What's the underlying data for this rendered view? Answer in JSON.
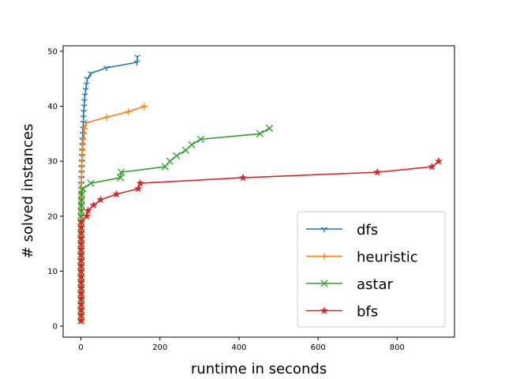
{
  "chart_data": {
    "type": "line",
    "xlabel": "runtime in seconds",
    "ylabel": "# solved instances",
    "xlim": [
      -45,
      945
    ],
    "ylim": [
      -2,
      51
    ],
    "xticks": [
      0,
      200,
      400,
      600,
      800
    ],
    "yticks": [
      0,
      10,
      20,
      30,
      40,
      50
    ],
    "legend_position": "lower right",
    "grid": false,
    "series": [
      {
        "name": "dfs",
        "color": "#1f77b4",
        "marker": "tri_down",
        "points": [
          [
            0.5,
            1
          ],
          [
            0.5,
            2
          ],
          [
            0.5,
            3
          ],
          [
            0.5,
            4
          ],
          [
            0.5,
            5
          ],
          [
            0.5,
            6
          ],
          [
            0.5,
            7
          ],
          [
            0.5,
            8
          ],
          [
            0.5,
            9
          ],
          [
            0.5,
            10
          ],
          [
            0.5,
            11
          ],
          [
            0.5,
            12
          ],
          [
            0.5,
            13
          ],
          [
            0.5,
            14
          ],
          [
            0.5,
            15
          ],
          [
            0.5,
            16
          ],
          [
            0.5,
            17
          ],
          [
            0.5,
            18
          ],
          [
            0.5,
            19
          ],
          [
            0.5,
            20
          ],
          [
            0.6,
            21
          ],
          [
            0.7,
            22
          ],
          [
            0.8,
            23
          ],
          [
            0.9,
            24
          ],
          [
            1,
            25
          ],
          [
            1.2,
            26
          ],
          [
            1.5,
            27
          ],
          [
            1.8,
            28
          ],
          [
            2,
            29
          ],
          [
            2.5,
            30
          ],
          [
            3,
            31
          ],
          [
            3.2,
            32
          ],
          [
            3.5,
            33
          ],
          [
            4,
            34
          ],
          [
            4.5,
            35
          ],
          [
            5,
            36
          ],
          [
            6,
            37
          ],
          [
            6.5,
            38
          ],
          [
            7,
            39
          ],
          [
            8,
            40
          ],
          [
            9,
            41
          ],
          [
            10,
            42
          ],
          [
            12,
            43
          ],
          [
            14,
            44
          ],
          [
            16,
            45
          ],
          [
            25,
            46
          ],
          [
            65,
            47
          ],
          [
            142,
            48
          ],
          [
            143,
            49
          ]
        ]
      },
      {
        "name": "heuristic",
        "color": "#ff7f0e",
        "marker": "plus",
        "points": [
          [
            0.5,
            1
          ],
          [
            0.5,
            2
          ],
          [
            0.5,
            3
          ],
          [
            0.5,
            4
          ],
          [
            0.5,
            5
          ],
          [
            0.5,
            6
          ],
          [
            0.5,
            7
          ],
          [
            0.5,
            8
          ],
          [
            0.5,
            9
          ],
          [
            0.5,
            10
          ],
          [
            0.5,
            11
          ],
          [
            0.5,
            12
          ],
          [
            0.5,
            13
          ],
          [
            0.5,
            14
          ],
          [
            0.5,
            15
          ],
          [
            0.5,
            16
          ],
          [
            0.5,
            17
          ],
          [
            0.5,
            18
          ],
          [
            0.5,
            19
          ],
          [
            0.5,
            20
          ],
          [
            0.6,
            21
          ],
          [
            0.7,
            22
          ],
          [
            0.8,
            23
          ],
          [
            0.9,
            24
          ],
          [
            1,
            25
          ],
          [
            1.2,
            26
          ],
          [
            1.5,
            27
          ],
          [
            1.8,
            28
          ],
          [
            2,
            29
          ],
          [
            2.5,
            30
          ],
          [
            3,
            31
          ],
          [
            4,
            32
          ],
          [
            5,
            33
          ],
          [
            6,
            34
          ],
          [
            8,
            35
          ],
          [
            9,
            36
          ],
          [
            14,
            37
          ],
          [
            65,
            38
          ],
          [
            120,
            39
          ],
          [
            160,
            40
          ]
        ]
      },
      {
        "name": "astar",
        "color": "#2ca02c",
        "marker": "x",
        "points": [
          [
            0.5,
            1
          ],
          [
            0.5,
            2
          ],
          [
            0.5,
            3
          ],
          [
            0.5,
            4
          ],
          [
            0.5,
            5
          ],
          [
            0.5,
            6
          ],
          [
            0.5,
            7
          ],
          [
            0.5,
            8
          ],
          [
            0.5,
            9
          ],
          [
            0.5,
            10
          ],
          [
            0.5,
            11
          ],
          [
            0.5,
            12
          ],
          [
            0.5,
            13
          ],
          [
            0.5,
            14
          ],
          [
            0.5,
            15
          ],
          [
            0.5,
            16
          ],
          [
            0.5,
            17
          ],
          [
            0.5,
            18
          ],
          [
            0.5,
            19
          ],
          [
            0.6,
            20
          ],
          [
            0.8,
            21
          ],
          [
            1,
            22
          ],
          [
            1.5,
            23
          ],
          [
            2,
            24
          ],
          [
            5,
            25
          ],
          [
            25,
            26
          ],
          [
            100,
            27
          ],
          [
            102,
            28
          ],
          [
            213,
            29
          ],
          [
            225,
            30
          ],
          [
            242,
            31
          ],
          [
            265,
            32
          ],
          [
            280,
            33
          ],
          [
            303,
            34
          ],
          [
            453,
            35
          ],
          [
            477,
            36
          ]
        ]
      },
      {
        "name": "bfs",
        "color": "#d62728",
        "marker": "star",
        "points": [
          [
            0.5,
            1
          ],
          [
            0.5,
            2
          ],
          [
            0.5,
            3
          ],
          [
            0.5,
            4
          ],
          [
            0.5,
            5
          ],
          [
            0.5,
            6
          ],
          [
            0.5,
            7
          ],
          [
            0.5,
            8
          ],
          [
            0.5,
            9
          ],
          [
            0.5,
            10
          ],
          [
            0.5,
            11
          ],
          [
            0.5,
            12
          ],
          [
            0.5,
            13
          ],
          [
            0.5,
            14
          ],
          [
            0.5,
            15
          ],
          [
            0.5,
            16
          ],
          [
            0.5,
            17
          ],
          [
            0.6,
            18
          ],
          [
            1,
            19
          ],
          [
            15,
            20
          ],
          [
            18,
            21
          ],
          [
            32,
            22
          ],
          [
            50,
            23
          ],
          [
            90,
            24
          ],
          [
            145,
            25
          ],
          [
            150,
            26
          ],
          [
            410,
            27
          ],
          [
            750,
            28
          ],
          [
            888,
            29
          ],
          [
            905,
            30
          ]
        ]
      }
    ]
  }
}
